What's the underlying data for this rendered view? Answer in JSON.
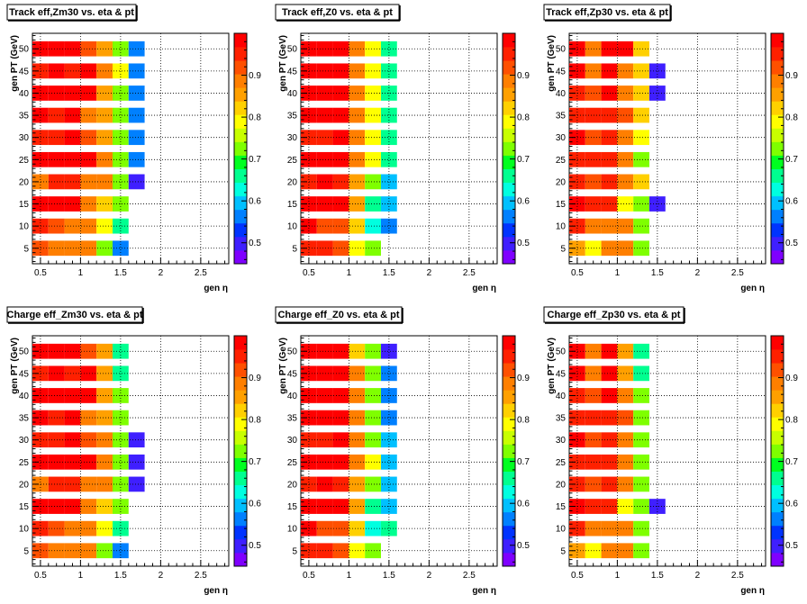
{
  "chart_data": [
    {
      "type": "heatmap",
      "title": "Track eff,Zm30 vs. eta & pt",
      "xlabel": "gen η",
      "ylabel": "gen PT (GeV)",
      "xlim": [
        0.4,
        2.85
      ],
      "ylim": [
        1.5,
        53.5
      ],
      "zlim": [
        0.45,
        1.0
      ],
      "x_ticks": [
        "0.5",
        "1",
        "1.5",
        "2",
        "2.5"
      ],
      "y_ticks": [
        "5",
        "10",
        "15",
        "20",
        "25",
        "30",
        "35",
        "40",
        "45",
        "50"
      ],
      "z_ticks": [
        "0.5",
        "0.6",
        "0.7",
        "0.8",
        "0.9"
      ],
      "x_bins": [
        0.4,
        0.6,
        0.8,
        1.0,
        1.2,
        1.4,
        1.6
      ],
      "y_bins": [
        5,
        10,
        15,
        20,
        25,
        30,
        35,
        40,
        45,
        50
      ],
      "values": [
        [
          0.92,
          0.88,
          0.88,
          0.88,
          0.74,
          0.56
        ],
        [
          0.95,
          0.93,
          0.89,
          0.89,
          0.78,
          0.66
        ],
        [
          0.98,
          0.98,
          0.98,
          0.89,
          0.82,
          0.72
        ],
        [
          0.89,
          0.95,
          0.95,
          0.89,
          0.89,
          0.72,
          0.51
        ],
        [
          0.98,
          0.98,
          0.98,
          0.98,
          0.88,
          0.74,
          0.55
        ],
        [
          0.95,
          0.95,
          0.98,
          0.92,
          0.84,
          0.74,
          0.55
        ],
        [
          0.98,
          0.95,
          0.98,
          0.89,
          0.84,
          0.74,
          0.55
        ],
        [
          0.98,
          0.98,
          0.98,
          0.98,
          0.86,
          0.74,
          0.55
        ],
        [
          0.95,
          0.98,
          0.95,
          0.98,
          0.89,
          0.78,
          0.55
        ],
        [
          0.98,
          0.98,
          0.98,
          0.92,
          0.84,
          0.74,
          0.55
        ]
      ]
    },
    {
      "type": "heatmap",
      "title": "Track eff,Z0 vs. eta & pt",
      "xlabel": "gen η",
      "ylabel": "gen PT (GeV)",
      "xlim": [
        0.4,
        2.85
      ],
      "ylim": [
        1.5,
        53.5
      ],
      "zlim": [
        0.45,
        1.0
      ],
      "x_ticks": [
        "0.5",
        "1",
        "1.5",
        "2",
        "2.5"
      ],
      "y_ticks": [
        "5",
        "10",
        "15",
        "20",
        "25",
        "30",
        "35",
        "40",
        "45",
        "50"
      ],
      "z_ticks": [
        "0.5",
        "0.6",
        "0.7",
        "0.8",
        "0.9"
      ],
      "x_bins": [
        0.4,
        0.6,
        0.8,
        1.0,
        1.2,
        1.4,
        1.6
      ],
      "y_bins": [
        5,
        10,
        15,
        20,
        25,
        30,
        35,
        40,
        45,
        50
      ],
      "values": [
        [
          0.95,
          0.95,
          0.92,
          0.78,
          0.73
        ],
        [
          0.98,
          0.92,
          0.92,
          0.82,
          0.64,
          0.57
        ],
        [
          0.98,
          0.98,
          0.98,
          0.84,
          0.66,
          0.58
        ],
        [
          0.95,
          0.98,
          0.95,
          0.84,
          0.74,
          0.58
        ],
        [
          0.98,
          0.98,
          0.98,
          0.89,
          0.78,
          0.66
        ],
        [
          0.95,
          0.95,
          0.98,
          0.89,
          0.78,
          0.66
        ],
        [
          0.98,
          0.98,
          0.98,
          0.89,
          0.78,
          0.66
        ],
        [
          0.98,
          0.98,
          0.98,
          0.89,
          0.78,
          0.66
        ],
        [
          0.98,
          0.98,
          0.98,
          0.89,
          0.78,
          0.66
        ],
        [
          0.98,
          0.98,
          0.98,
          0.89,
          0.78,
          0.66
        ]
      ]
    },
    {
      "type": "heatmap",
      "title": "Track eff,Zp30 vs. eta & pt",
      "xlabel": "gen η",
      "ylabel": "gen PT (GeV)",
      "xlim": [
        0.4,
        2.85
      ],
      "ylim": [
        1.5,
        53.5
      ],
      "zlim": [
        0.45,
        1.0
      ],
      "x_ticks": [
        "0.5",
        "1",
        "1.5",
        "2",
        "2.5"
      ],
      "y_ticks": [
        "5",
        "10",
        "15",
        "20",
        "25",
        "30",
        "35",
        "40",
        "45",
        "50"
      ],
      "z_ticks": [
        "0.5",
        "0.6",
        "0.7",
        "0.8",
        "0.9"
      ],
      "x_bins": [
        0.4,
        0.6,
        0.8,
        1.0,
        1.2,
        1.4
      ],
      "y_bins": [
        5,
        10,
        15,
        20,
        25,
        30,
        35,
        40,
        45,
        50
      ],
      "values": [
        [
          0.86,
          0.78,
          0.88,
          0.88,
          0.74
        ],
        [
          0.95,
          0.88,
          0.88,
          0.88,
          0.74
        ],
        [
          0.98,
          0.95,
          0.95,
          0.78,
          0.74,
          0.51
        ],
        [
          0.95,
          0.92,
          0.95,
          0.88,
          0.82
        ],
        [
          0.95,
          0.95,
          0.95,
          0.89,
          0.74
        ],
        [
          0.98,
          0.92,
          0.95,
          0.88,
          0.78
        ],
        [
          0.95,
          0.95,
          0.95,
          0.92,
          0.82
        ],
        [
          0.95,
          0.92,
          0.98,
          0.89,
          0.82,
          0.51
        ],
        [
          0.98,
          0.88,
          0.98,
          0.88,
          0.82,
          0.51
        ],
        [
          0.98,
          0.89,
          0.98,
          0.98,
          0.82
        ]
      ]
    },
    {
      "type": "heatmap",
      "title": "Charge eff_Zm30 vs. eta & pt",
      "xlabel": "gen η",
      "ylabel": "gen PT (GeV)",
      "xlim": [
        0.4,
        2.85
      ],
      "ylim": [
        1.5,
        53.5
      ],
      "zlim": [
        0.45,
        1.0
      ],
      "x_ticks": [
        "0.5",
        "1",
        "1.5",
        "2",
        "2.5"
      ],
      "y_ticks": [
        "5",
        "10",
        "15",
        "20",
        "25",
        "30",
        "35",
        "40",
        "45",
        "50"
      ],
      "z_ticks": [
        "0.5",
        "0.6",
        "0.7",
        "0.8",
        "0.9"
      ],
      "x_bins": [
        0.4,
        0.6,
        0.8,
        1.0,
        1.2,
        1.4,
        1.6
      ],
      "y_bins": [
        5,
        10,
        15,
        20,
        25,
        30,
        35,
        40,
        45,
        50
      ],
      "values": [
        [
          0.92,
          0.88,
          0.88,
          0.88,
          0.74,
          0.56
        ],
        [
          0.95,
          0.93,
          0.89,
          0.89,
          0.78,
          0.66
        ],
        [
          0.98,
          0.98,
          0.98,
          0.89,
          0.82,
          0.72
        ],
        [
          0.89,
          0.95,
          0.95,
          0.89,
          0.89,
          0.72,
          0.51
        ],
        [
          0.98,
          0.98,
          0.98,
          0.98,
          0.89,
          0.74,
          0.51
        ],
        [
          0.95,
          0.95,
          0.98,
          0.92,
          0.89,
          0.74,
          0.51
        ],
        [
          0.98,
          0.95,
          0.98,
          0.89,
          0.84,
          0.74
        ],
        [
          0.98,
          0.98,
          0.98,
          0.98,
          0.86,
          0.74
        ],
        [
          0.95,
          0.98,
          0.95,
          0.98,
          0.84,
          0.66
        ],
        [
          0.98,
          0.98,
          0.98,
          0.92,
          0.84,
          0.66
        ]
      ]
    },
    {
      "type": "heatmap",
      "title": "Charge eff_Z0 vs. eta & pt",
      "xlabel": "gen η",
      "ylabel": "gen PT (GeV)",
      "xlim": [
        0.4,
        2.85
      ],
      "ylim": [
        1.5,
        53.5
      ],
      "zlim": [
        0.45,
        1.0
      ],
      "x_ticks": [
        "0.5",
        "1",
        "1.5",
        "2",
        "2.5"
      ],
      "y_ticks": [
        "5",
        "10",
        "15",
        "20",
        "25",
        "30",
        "35",
        "40",
        "45",
        "50"
      ],
      "z_ticks": [
        "0.5",
        "0.6",
        "0.7",
        "0.8",
        "0.9"
      ],
      "x_bins": [
        0.4,
        0.6,
        0.8,
        1.0,
        1.2,
        1.4
      ],
      "y_bins": [
        5,
        10,
        15,
        20,
        25,
        30,
        35,
        40,
        45,
        50
      ],
      "values": [
        [
          0.95,
          0.95,
          0.92,
          0.78,
          0.73
        ],
        [
          0.98,
          0.92,
          0.92,
          0.82,
          0.64,
          0.66
        ],
        [
          0.98,
          0.98,
          0.98,
          0.84,
          0.66,
          0.58
        ],
        [
          0.95,
          0.98,
          0.95,
          0.84,
          0.74,
          0.58
        ],
        [
          0.98,
          0.98,
          0.98,
          0.89,
          0.78,
          0.58
        ],
        [
          0.95,
          0.95,
          0.98,
          0.89,
          0.74,
          0.58
        ],
        [
          0.98,
          0.98,
          0.98,
          0.89,
          0.74,
          0.55
        ],
        [
          0.98,
          0.98,
          0.98,
          0.89,
          0.74,
          0.55
        ],
        [
          0.98,
          0.98,
          0.98,
          0.89,
          0.74,
          0.55
        ],
        [
          0.98,
          0.98,
          0.98,
          0.82,
          0.74,
          0.51
        ]
      ]
    },
    {
      "type": "heatmap",
      "title": "Charge eff_Zp30 vs. eta & pt",
      "xlabel": "gen η",
      "ylabel": "gen PT (GeV)",
      "xlim": [
        0.4,
        2.85
      ],
      "ylim": [
        1.5,
        53.5
      ],
      "zlim": [
        0.45,
        1.0
      ],
      "x_ticks": [
        "0.5",
        "1",
        "1.5",
        "2",
        "2.5"
      ],
      "y_ticks": [
        "5",
        "10",
        "15",
        "20",
        "25",
        "30",
        "35",
        "40",
        "45",
        "50"
      ],
      "z_ticks": [
        "0.5",
        "0.6",
        "0.7",
        "0.8",
        "0.9"
      ],
      "x_bins": [
        0.4,
        0.6,
        0.8,
        1.0,
        1.2,
        1.4
      ],
      "y_bins": [
        5,
        10,
        15,
        20,
        25,
        30,
        35,
        40,
        45,
        50
      ],
      "values": [
        [
          0.86,
          0.78,
          0.88,
          0.88,
          0.74
        ],
        [
          0.95,
          0.88,
          0.88,
          0.88,
          0.74
        ],
        [
          0.98,
          0.95,
          0.95,
          0.78,
          0.74,
          0.51
        ],
        [
          0.95,
          0.92,
          0.95,
          0.88,
          0.74
        ],
        [
          0.95,
          0.95,
          0.95,
          0.89,
          0.74
        ],
        [
          0.98,
          0.92,
          0.95,
          0.88,
          0.74
        ],
        [
          0.95,
          0.95,
          0.95,
          0.92,
          0.74
        ],
        [
          0.95,
          0.92,
          0.98,
          0.89,
          0.74
        ],
        [
          0.98,
          0.88,
          0.98,
          0.84,
          0.66
        ],
        [
          0.98,
          0.89,
          0.98,
          0.84,
          0.66
        ]
      ]
    }
  ]
}
